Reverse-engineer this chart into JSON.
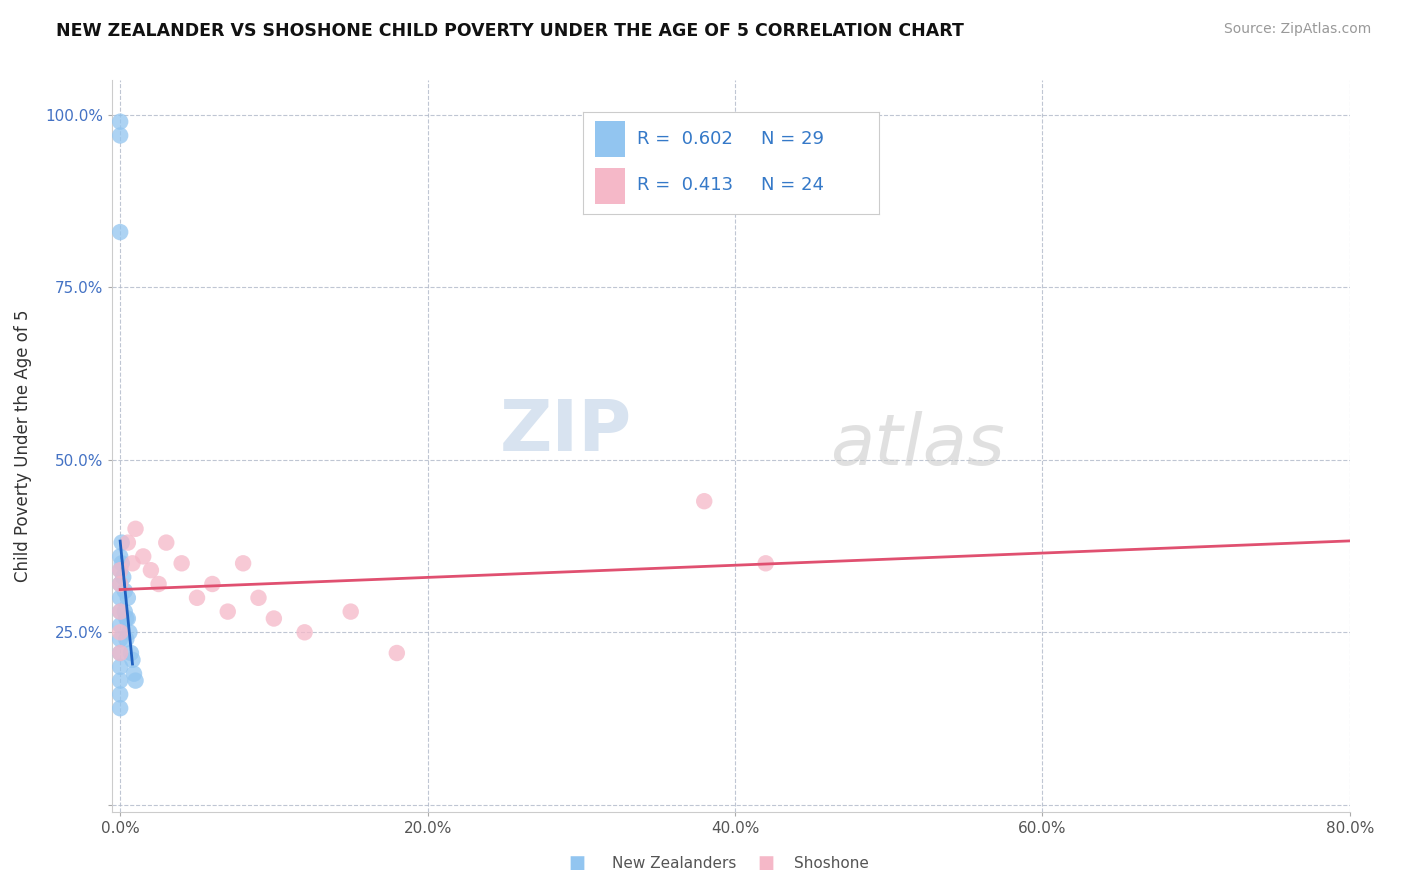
{
  "title": "NEW ZEALANDER VS SHOSHONE CHILD POVERTY UNDER THE AGE OF 5 CORRELATION CHART",
  "source": "Source: ZipAtlas.com",
  "ylabel": "Child Poverty Under the Age of 5",
  "xlim": [
    -0.005,
    0.8
  ],
  "ylim": [
    -0.01,
    1.05
  ],
  "xticks": [
    0.0,
    0.2,
    0.4,
    0.6,
    0.8
  ],
  "xtick_labels": [
    "0.0%",
    "20.0%",
    "40.0%",
    "60.0%",
    "80.0%"
  ],
  "yticks": [
    0.0,
    0.25,
    0.5,
    0.75,
    1.0
  ],
  "ytick_labels": [
    "",
    "25.0%",
    "50.0%",
    "75.0%",
    "100.0%"
  ],
  "nz_color": "#92c5f0",
  "shoshone_color": "#f5b8c8",
  "nz_line_color": "#2060c0",
  "shoshone_line_color": "#e05070",
  "nz_R": 0.602,
  "nz_N": 29,
  "shoshone_R": 0.413,
  "shoshone_N": 24,
  "watermark_zip": "ZIP",
  "watermark_atlas": "atlas",
  "nz_points_x": [
    0.0,
    0.0,
    0.0,
    0.0,
    0.0,
    0.0,
    0.0,
    0.0,
    0.0,
    0.0,
    0.0,
    0.0,
    0.0,
    0.0,
    0.0,
    0.001,
    0.001,
    0.002,
    0.003,
    0.003,
    0.004,
    0.004,
    0.005,
    0.005,
    0.006,
    0.007,
    0.008,
    0.009,
    0.01
  ],
  "nz_points_y": [
    0.99,
    0.97,
    0.83,
    0.36,
    0.34,
    0.32,
    0.3,
    0.28,
    0.26,
    0.24,
    0.22,
    0.2,
    0.18,
    0.16,
    0.14,
    0.38,
    0.35,
    0.33,
    0.31,
    0.28,
    0.27,
    0.24,
    0.3,
    0.27,
    0.25,
    0.22,
    0.21,
    0.19,
    0.18
  ],
  "shoshone_points_x": [
    0.0,
    0.0,
    0.0,
    0.0,
    0.0,
    0.005,
    0.008,
    0.01,
    0.015,
    0.02,
    0.025,
    0.03,
    0.04,
    0.05,
    0.06,
    0.07,
    0.08,
    0.09,
    0.1,
    0.12,
    0.15,
    0.18,
    0.38,
    0.42
  ],
  "shoshone_points_y": [
    0.34,
    0.32,
    0.28,
    0.25,
    0.22,
    0.38,
    0.35,
    0.4,
    0.36,
    0.34,
    0.32,
    0.38,
    0.35,
    0.3,
    0.32,
    0.28,
    0.35,
    0.3,
    0.27,
    0.25,
    0.28,
    0.22,
    0.44,
    0.35
  ]
}
